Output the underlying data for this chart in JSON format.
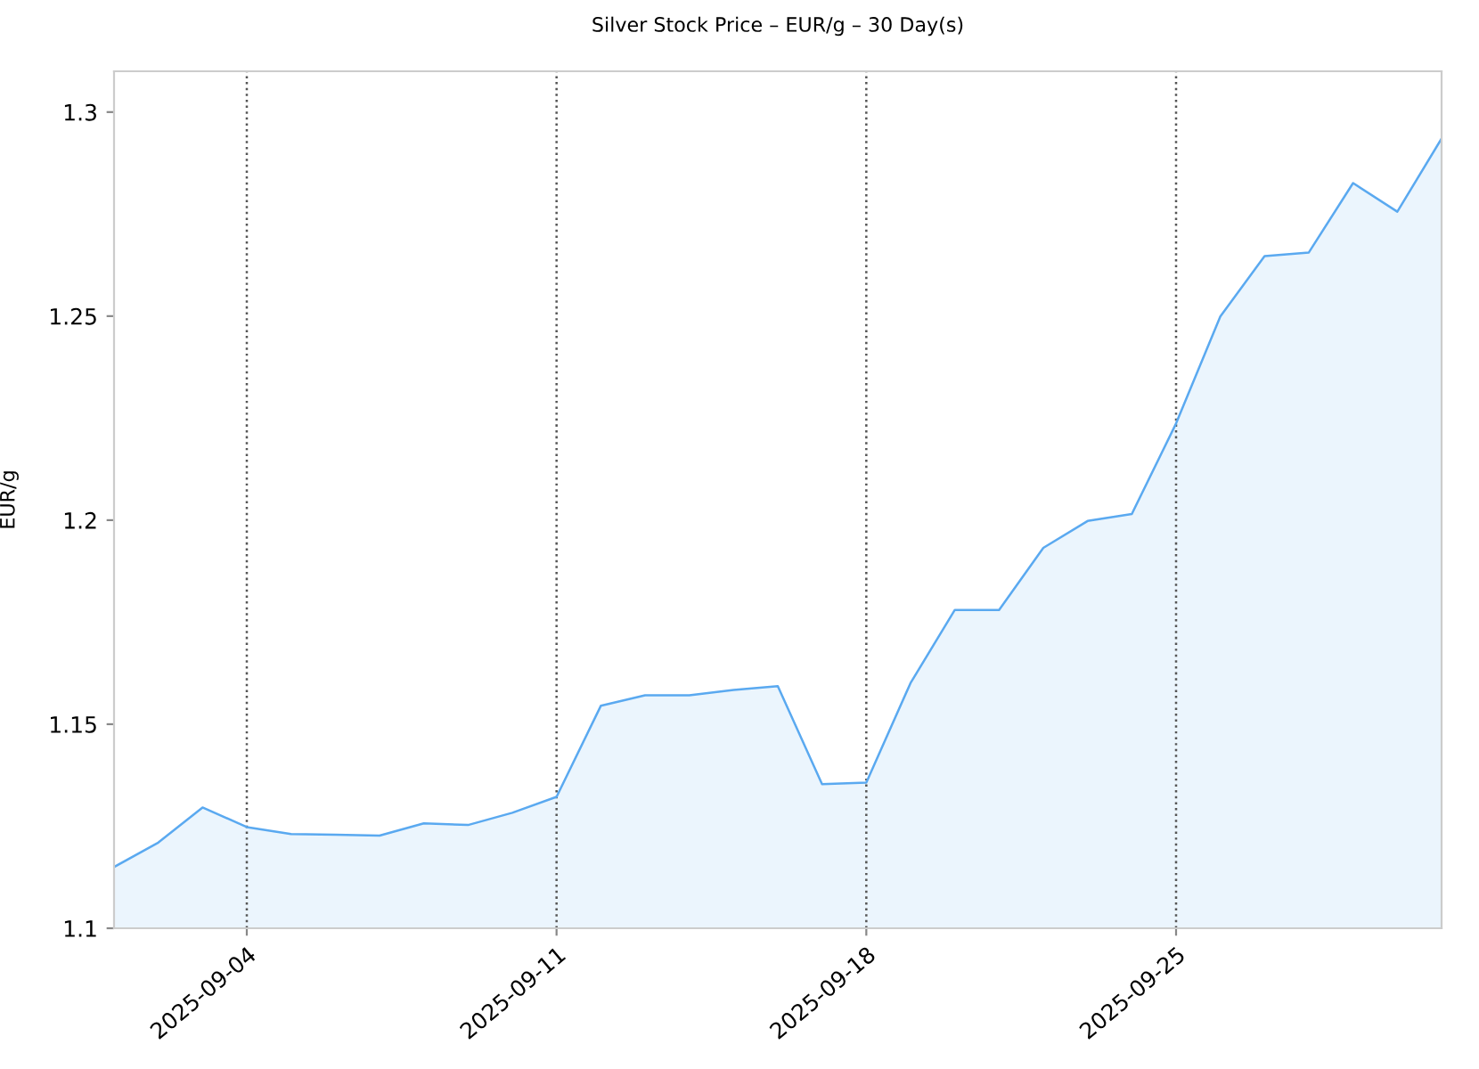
{
  "chart_data": {
    "type": "area",
    "title": "Silver Stock Price – EUR/g – 30 Day(s)",
    "ylabel": "EUR/g",
    "x": [
      "2025-09-01",
      "2025-09-02",
      "2025-09-03",
      "2025-09-04",
      "2025-09-05",
      "2025-09-06",
      "2025-09-07",
      "2025-09-08",
      "2025-09-09",
      "2025-09-10",
      "2025-09-11",
      "2025-09-12",
      "2025-09-13",
      "2025-09-14",
      "2025-09-15",
      "2025-09-16",
      "2025-09-17",
      "2025-09-18",
      "2025-09-19",
      "2025-09-20",
      "2025-09-21",
      "2025-09-22",
      "2025-09-23",
      "2025-09-24",
      "2025-09-25",
      "2025-09-26",
      "2025-09-27",
      "2025-09-28",
      "2025-09-29",
      "2025-09-30",
      "2025-10-01"
    ],
    "series": [
      {
        "color": "#5aa9f0",
        "values": [
          1.115,
          1.121,
          1.1296,
          1.1248,
          1.1231,
          1.1229,
          1.1227,
          1.1257,
          1.1253,
          1.1283,
          1.1322,
          1.1545,
          1.1571,
          1.1571,
          1.1584,
          1.1593,
          1.1353,
          1.1357,
          1.1601,
          1.178,
          1.178,
          1.1932,
          1.1998,
          1.2015,
          1.2237,
          1.2499,
          1.2647,
          1.2656,
          1.2826,
          1.2756,
          1.2935
        ]
      }
    ],
    "xlim": [
      "2025-09-01",
      "2025-10-01"
    ],
    "xticks": [
      "2025-09-04",
      "2025-09-11",
      "2025-09-18",
      "2025-09-25"
    ],
    "ylim": [
      1.1,
      1.31
    ],
    "yticks": [
      1.1,
      1.15,
      1.2,
      1.25,
      1.3
    ],
    "grid": "x",
    "legend": false
  }
}
